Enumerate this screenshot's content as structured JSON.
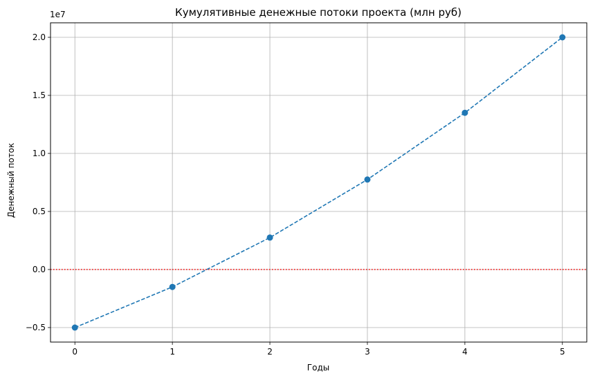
{
  "chart_data": {
    "type": "line",
    "title": "Кумулятивные денежные потоки проекта (млн руб)",
    "xlabel": "Годы",
    "ylabel": "Денежный поток",
    "y_offset_label": "1e7",
    "x": [
      0,
      1,
      2,
      3,
      4,
      5
    ],
    "series": [
      {
        "values": [
          -5000000,
          -1500000,
          2750000,
          7750000,
          13500000,
          20000000
        ]
      }
    ],
    "x_ticks": [
      0,
      1,
      2,
      3,
      4,
      5
    ],
    "x_tick_labels": [
      "0",
      "1",
      "2",
      "3",
      "4",
      "5"
    ],
    "y_ticks": [
      -5000000,
      0,
      5000000,
      10000000,
      15000000,
      20000000
    ],
    "y_tick_labels": [
      "−0.5",
      "0.0",
      "0.5",
      "1.0",
      "1.5",
      "2.0"
    ],
    "xlim": [
      -0.25,
      5.25
    ],
    "ylim": [
      -6250000,
      21250000
    ],
    "reference_line": {
      "y": 0,
      "color": "#ff0000",
      "style": "dotted"
    },
    "grid": true,
    "colors": {
      "series": "#1f77b4",
      "grid": "#b0b0b0",
      "reference": "#ff0000"
    }
  }
}
